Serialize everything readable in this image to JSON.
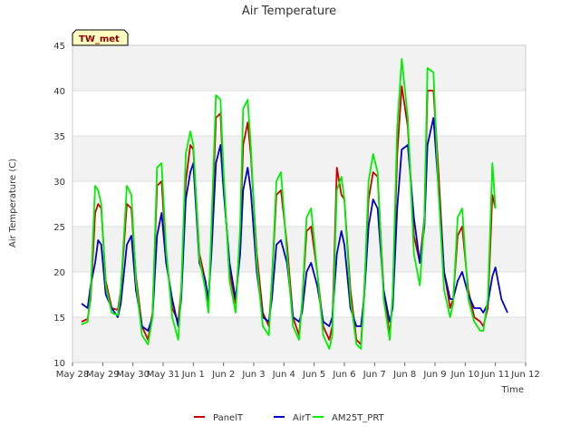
{
  "chart_data": {
    "type": "line",
    "title": "Air Temperature",
    "xlabel": "Time",
    "ylabel": "Air Temperature (C)",
    "site_label": "TW_met",
    "x_unit": "days since May 28",
    "xlim": [
      0,
      15
    ],
    "ylim": [
      10,
      45
    ],
    "x_ticks": [
      {
        "x": 0,
        "label": "May 28"
      },
      {
        "x": 1,
        "label": "May 29"
      },
      {
        "x": 2,
        "label": "May 30"
      },
      {
        "x": 3,
        "label": "May 31"
      },
      {
        "x": 4,
        "label": "Jun 1"
      },
      {
        "x": 5,
        "label": "Jun 2"
      },
      {
        "x": 6,
        "label": "Jun 3"
      },
      {
        "x": 7,
        "label": "Jun 4"
      },
      {
        "x": 8,
        "label": "Jun 5"
      },
      {
        "x": 9,
        "label": "Jun 6"
      },
      {
        "x": 10,
        "label": "Jun 7"
      },
      {
        "x": 11,
        "label": "Jun 8"
      },
      {
        "x": 12,
        "label": "Jun 9"
      },
      {
        "x": 13,
        "label": "Jun 10"
      },
      {
        "x": 14,
        "label": "Jun 11"
      },
      {
        "x": 15,
        "label": "Jun 12"
      }
    ],
    "y_ticks": [
      10,
      15,
      20,
      25,
      30,
      35,
      40,
      45
    ],
    "grid": true,
    "banded_background": true,
    "legend_position": "bottom",
    "series": [
      {
        "name": "PanelT",
        "color": "#cc0000",
        "x": [
          0.3,
          0.5,
          0.6,
          0.75,
          0.85,
          0.95,
          1.1,
          1.3,
          1.5,
          1.6,
          1.8,
          1.95,
          2.1,
          2.3,
          2.5,
          2.65,
          2.8,
          2.95,
          3.1,
          3.3,
          3.5,
          3.6,
          3.75,
          3.9,
          4.0,
          4.2,
          4.4,
          4.5,
          4.6,
          4.75,
          4.9,
          5.0,
          5.2,
          5.4,
          5.55,
          5.65,
          5.8,
          5.9,
          6.1,
          6.3,
          6.5,
          6.6,
          6.75,
          6.9,
          7.1,
          7.3,
          7.5,
          7.6,
          7.75,
          7.9,
          8.1,
          8.3,
          8.5,
          8.6,
          8.75,
          8.9,
          9.0,
          9.2,
          9.4,
          9.55,
          9.65,
          9.8,
          9.95,
          10.1,
          10.3,
          10.5,
          10.6,
          10.75,
          10.9,
          11.1,
          11.3,
          11.5,
          11.65,
          11.75,
          11.95,
          12.1,
          12.3,
          12.5,
          12.6,
          12.75,
          12.9,
          13.1,
          13.3,
          13.5,
          13.6,
          13.75,
          13.9,
          14.0
        ],
        "y": [
          14.5,
          14.8,
          17.0,
          26.5,
          27.5,
          27.0,
          19.0,
          16.0,
          15.8,
          18.0,
          27.5,
          27.0,
          19.5,
          14.0,
          12.5,
          15.5,
          29.5,
          30.0,
          22.0,
          16.0,
          14.5,
          18.0,
          30.0,
          34.0,
          33.5,
          22.0,
          19.0,
          16.0,
          24.0,
          37.0,
          37.5,
          30.0,
          20.0,
          16.5,
          24.0,
          34.0,
          36.5,
          33.0,
          22.0,
          15.5,
          14.0,
          19.0,
          28.5,
          29.0,
          23.0,
          15.0,
          13.0,
          16.5,
          24.5,
          25.0,
          20.0,
          14.0,
          12.5,
          14.0,
          31.5,
          28.5,
          28.0,
          18.0,
          12.5,
          12.0,
          17.5,
          28.0,
          31.0,
          30.5,
          18.0,
          13.0,
          17.0,
          33.0,
          40.5,
          36.0,
          24.0,
          21.0,
          26.0,
          40.0,
          40.0,
          32.0,
          20.0,
          16.0,
          17.0,
          24.0,
          25.0,
          18.0,
          15.0,
          14.5,
          14.0,
          16.0,
          28.5,
          27.0
        ]
      },
      {
        "name": "AirT",
        "color": "#0000cc",
        "x": [
          0.3,
          0.5,
          0.6,
          0.75,
          0.85,
          0.95,
          1.1,
          1.3,
          1.5,
          1.6,
          1.8,
          1.95,
          2.1,
          2.3,
          2.5,
          2.65,
          2.8,
          2.95,
          3.1,
          3.3,
          3.5,
          3.6,
          3.75,
          3.9,
          4.0,
          4.2,
          4.4,
          4.5,
          4.6,
          4.75,
          4.9,
          5.0,
          5.2,
          5.4,
          5.55,
          5.65,
          5.8,
          5.9,
          6.1,
          6.3,
          6.5,
          6.6,
          6.75,
          6.9,
          7.1,
          7.3,
          7.5,
          7.6,
          7.75,
          7.9,
          8.1,
          8.3,
          8.5,
          8.6,
          8.75,
          8.9,
          9.0,
          9.2,
          9.4,
          9.55,
          9.65,
          9.8,
          9.95,
          10.1,
          10.3,
          10.5,
          10.6,
          10.75,
          10.9,
          11.1,
          11.3,
          11.5,
          11.65,
          11.75,
          11.95,
          12.1,
          12.3,
          12.5,
          12.6,
          12.75,
          12.9,
          13.1,
          13.3,
          13.5,
          13.6,
          13.75,
          13.9,
          14.0,
          14.2,
          14.4
        ],
        "y": [
          16.5,
          16.0,
          18.5,
          21.0,
          23.5,
          23.0,
          17.5,
          16.0,
          15.0,
          16.5,
          23.0,
          24.0,
          18.0,
          14.0,
          13.5,
          15.0,
          24.0,
          26.5,
          21.0,
          17.0,
          14.0,
          17.0,
          28.0,
          31.0,
          32.0,
          21.0,
          19.0,
          17.0,
          22.0,
          32.0,
          34.0,
          29.0,
          21.0,
          17.0,
          22.0,
          29.0,
          31.5,
          29.0,
          20.0,
          15.0,
          14.5,
          17.0,
          23.0,
          23.5,
          21.0,
          15.0,
          14.5,
          15.5,
          20.0,
          21.0,
          18.5,
          14.5,
          14.0,
          15.0,
          22.0,
          24.5,
          23.0,
          16.0,
          14.0,
          14.0,
          17.0,
          25.0,
          28.0,
          27.0,
          18.0,
          14.5,
          16.0,
          27.0,
          33.5,
          34.0,
          26.0,
          21.0,
          25.0,
          34.0,
          37.0,
          30.0,
          20.0,
          17.0,
          17.0,
          19.0,
          20.0,
          17.5,
          16.0,
          16.0,
          15.5,
          16.5,
          19.5,
          20.5,
          17.0,
          15.5
        ]
      },
      {
        "name": "AM25T_PRT",
        "color": "#00ee00",
        "x": [
          0.3,
          0.5,
          0.6,
          0.75,
          0.85,
          0.95,
          1.1,
          1.3,
          1.5,
          1.6,
          1.8,
          1.95,
          2.1,
          2.3,
          2.5,
          2.65,
          2.8,
          2.95,
          3.1,
          3.3,
          3.5,
          3.6,
          3.75,
          3.9,
          4.0,
          4.2,
          4.4,
          4.5,
          4.6,
          4.75,
          4.9,
          5.0,
          5.2,
          5.4,
          5.55,
          5.65,
          5.8,
          5.9,
          6.1,
          6.3,
          6.5,
          6.6,
          6.75,
          6.9,
          7.1,
          7.3,
          7.5,
          7.6,
          7.75,
          7.9,
          8.1,
          8.3,
          8.5,
          8.6,
          8.75,
          8.9,
          9.0,
          9.2,
          9.4,
          9.55,
          9.65,
          9.8,
          9.95,
          10.1,
          10.3,
          10.5,
          10.6,
          10.75,
          10.9,
          11.1,
          11.3,
          11.5,
          11.65,
          11.75,
          11.95,
          12.1,
          12.3,
          12.5,
          12.6,
          12.75,
          12.9,
          13.1,
          13.3,
          13.5,
          13.6,
          13.75,
          13.9,
          14.0
        ],
        "y": [
          14.2,
          14.5,
          17.5,
          29.5,
          29.0,
          27.5,
          18.5,
          15.5,
          15.2,
          18.0,
          29.5,
          28.5,
          19.0,
          13.0,
          12.0,
          15.0,
          31.5,
          32.0,
          22.5,
          15.0,
          12.5,
          18.0,
          33.0,
          35.5,
          34.0,
          21.5,
          18.0,
          15.5,
          25.0,
          39.5,
          39.0,
          31.0,
          19.0,
          15.5,
          25.0,
          38.0,
          39.0,
          34.0,
          21.0,
          14.0,
          13.0,
          19.0,
          30.0,
          31.0,
          22.0,
          14.0,
          12.5,
          16.5,
          26.0,
          27.0,
          20.0,
          13.0,
          11.5,
          13.0,
          29.0,
          30.5,
          28.0,
          17.0,
          12.0,
          11.5,
          17.0,
          30.0,
          33.0,
          31.0,
          17.0,
          12.5,
          17.5,
          36.0,
          43.5,
          37.0,
          22.0,
          18.5,
          26.0,
          42.5,
          42.0,
          30.0,
          18.0,
          15.0,
          16.5,
          26.0,
          27.0,
          17.0,
          14.5,
          13.5,
          13.5,
          17.0,
          32.0,
          27.0
        ]
      }
    ]
  }
}
